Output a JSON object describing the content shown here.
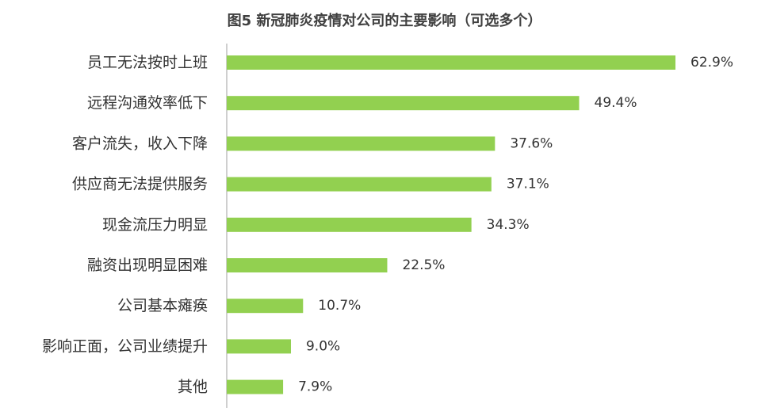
{
  "chart_data": {
    "type": "bar",
    "orientation": "horizontal",
    "title": "图5 新冠肺炎疫情对公司的主要影响（可选多个）",
    "categories": [
      "员工无法按时上班",
      "远程沟通效率低下",
      "客户流失，收入下降",
      "供应商无法提供服务",
      "现金流压力明显",
      "融资出现明显困难",
      "公司基本瘫痪",
      "影响正面，公司业绩提升",
      "其他"
    ],
    "values": [
      62.9,
      49.4,
      37.6,
      37.1,
      34.3,
      22.5,
      10.7,
      9.0,
      7.9
    ],
    "value_labels": [
      "62.9%",
      "49.4%",
      "37.6%",
      "37.1%",
      "34.3%",
      "22.5%",
      "10.7%",
      "9.0%",
      "7.9%"
    ],
    "unit": "%",
    "xlim": [
      0,
      100
    ],
    "grid": false,
    "legend": "none",
    "bar_color": "#92d050",
    "axis_color": "#bfbfbf"
  }
}
